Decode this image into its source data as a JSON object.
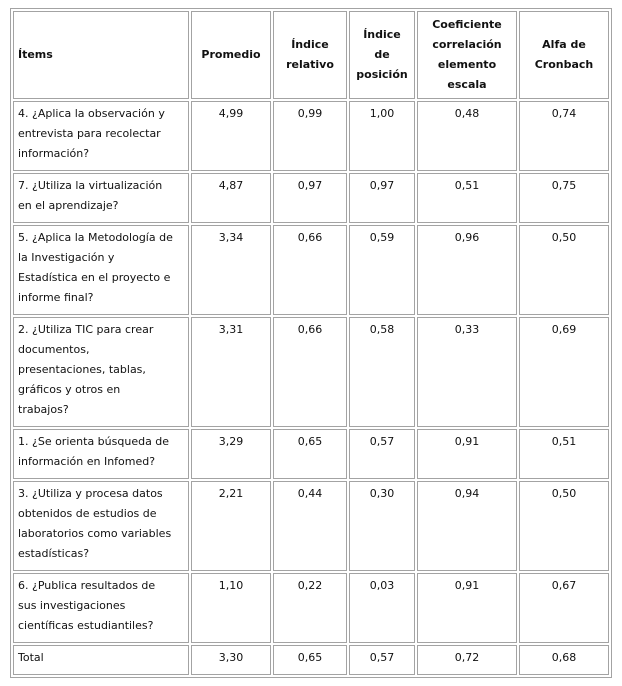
{
  "colors": {
    "table_border": "#a3a3a3",
    "text": "#111111",
    "background": "#ffffff"
  },
  "table": {
    "columns": [
      {
        "id": "items",
        "label": "Ítems"
      },
      {
        "id": "promedio",
        "label": "Promedio"
      },
      {
        "id": "indice_relativo",
        "label": "Índice\nrelativo"
      },
      {
        "id": "indice_posicion",
        "label": "Índice\nde\nposición"
      },
      {
        "id": "coef_correlacion",
        "label": "Coeficiente\ncorrelación\nelemento\nescala"
      },
      {
        "id": "alfa_cronbach",
        "label": "Alfa de\nCronbach"
      }
    ],
    "rows": [
      {
        "item": "4. ¿Aplica la observación y\nentrevista para recolectar\ninformación?",
        "values": [
          "4,99",
          "0,99",
          "1,00",
          "0,48",
          "0,74"
        ]
      },
      {
        "item": "7. ¿Utiliza la virtualización\nen el aprendizaje?",
        "values": [
          "4,87",
          "0,97",
          "0,97",
          "0,51",
          "0,75"
        ]
      },
      {
        "item": "5. ¿Aplica la Metodología de\nla Investigación y\nEstadística en el proyecto e\ninforme final?",
        "values": [
          "3,34",
          "0,66",
          "0,59",
          "0,96",
          "0,50"
        ]
      },
      {
        "item": "2. ¿Utiliza TIC para crear\ndocumentos,\npresentaciones, tablas,\ngráficos y otros en\ntrabajos?",
        "values": [
          "3,31",
          "0,66",
          "0,58",
          "0,33",
          "0,69"
        ]
      },
      {
        "item": "1. ¿Se orienta búsqueda de\ninformación en Infomed?",
        "values": [
          "3,29",
          "0,65",
          "0,57",
          "0,91",
          "0,51"
        ]
      },
      {
        "item": "3. ¿Utiliza y procesa datos\nobtenidos de estudios de\nlaboratorios como variables\nestadísticas?",
        "values": [
          "2,21",
          "0,44",
          "0,30",
          "0,94",
          "0,50"
        ]
      },
      {
        "item": "6. ¿Publica resultados de\nsus investigaciones\ncientíficas estudiantiles?",
        "values": [
          "1,10",
          "0,22",
          "0,03",
          "0,91",
          "0,67"
        ]
      },
      {
        "item": "Total",
        "values": [
          "3,30",
          "0,65",
          "0,57",
          "0,72",
          "0,68"
        ]
      }
    ]
  }
}
